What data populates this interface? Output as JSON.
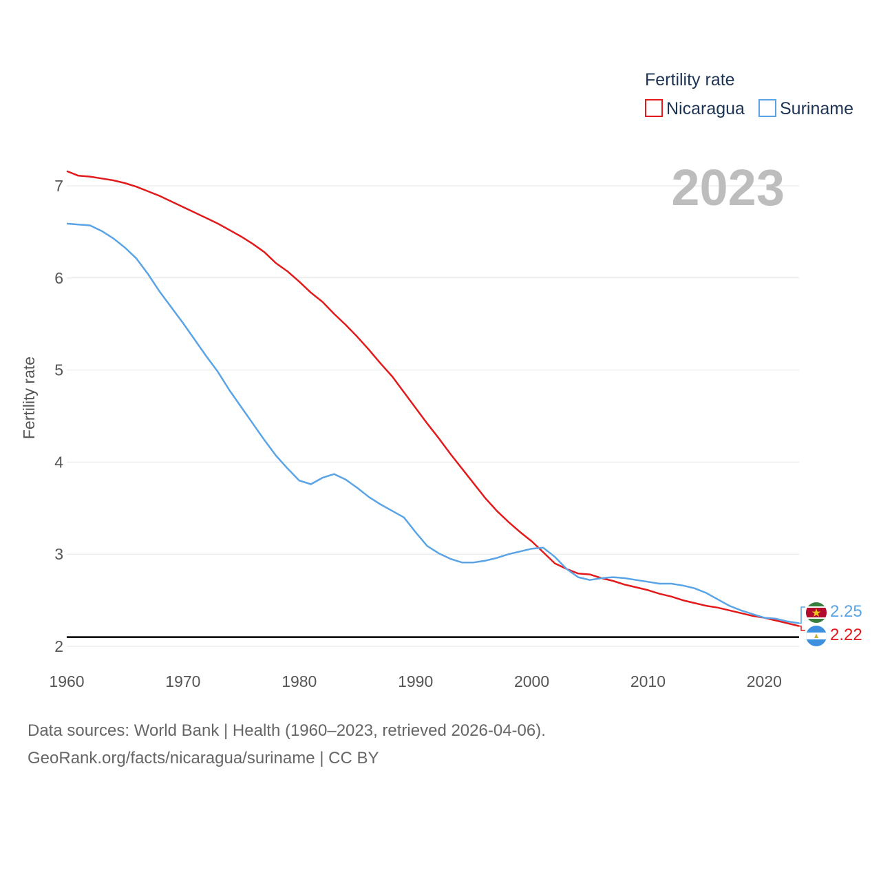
{
  "legend": {
    "title": "Fertility rate"
  },
  "year_label": "2023",
  "source": {
    "line1": "Data sources: World Bank | Health (1960–2023, retrieved 2026-04-06).",
    "line2": "GeoRank.org/facts/nicaragua/suriname | CC BY"
  },
  "colors": {
    "nicaragua": "#e31a1c",
    "suriname": "#5aa4e6",
    "reference": "#000000",
    "grid": "#e6e6e6"
  },
  "chart_data": {
    "type": "line",
    "title": "Fertility rate",
    "xlabel": "",
    "ylabel": "Fertility rate",
    "xlim": [
      1960,
      2023
    ],
    "ylim": [
      2,
      7.2
    ],
    "yticks": [
      2,
      3,
      4,
      5,
      6,
      7
    ],
    "xticks": [
      1960,
      1970,
      1980,
      1990,
      2000,
      2010,
      2020
    ],
    "grid": true,
    "legend_position": "top-right",
    "reference_line": 2.1,
    "x": [
      1960,
      1961,
      1962,
      1963,
      1964,
      1965,
      1966,
      1967,
      1968,
      1969,
      1970,
      1971,
      1972,
      1973,
      1974,
      1975,
      1976,
      1977,
      1978,
      1979,
      1980,
      1981,
      1982,
      1983,
      1984,
      1985,
      1986,
      1987,
      1988,
      1989,
      1990,
      1991,
      1992,
      1993,
      1994,
      1995,
      1996,
      1997,
      1998,
      1999,
      2000,
      2001,
      2002,
      2003,
      2004,
      2005,
      2006,
      2007,
      2008,
      2009,
      2010,
      2011,
      2012,
      2013,
      2014,
      2015,
      2016,
      2017,
      2018,
      2019,
      2020,
      2021,
      2022,
      2023
    ],
    "series": [
      {
        "name": "Nicaragua",
        "color": "#e31a1c",
        "end_label": "2.22",
        "values": [
          7.16,
          7.11,
          7.1,
          7.08,
          7.06,
          7.03,
          6.99,
          6.94,
          6.89,
          6.83,
          6.77,
          6.71,
          6.65,
          6.59,
          6.52,
          6.45,
          6.37,
          6.28,
          6.16,
          6.07,
          5.96,
          5.84,
          5.74,
          5.61,
          5.49,
          5.36,
          5.22,
          5.07,
          4.93,
          4.76,
          4.59,
          4.42,
          4.26,
          4.09,
          3.93,
          3.77,
          3.61,
          3.47,
          3.35,
          3.24,
          3.14,
          3.02,
          2.9,
          2.84,
          2.79,
          2.78,
          2.74,
          2.71,
          2.67,
          2.64,
          2.61,
          2.57,
          2.54,
          2.5,
          2.47,
          2.44,
          2.42,
          2.39,
          2.36,
          2.33,
          2.31,
          2.28,
          2.25,
          2.22
        ]
      },
      {
        "name": "Suriname",
        "color": "#5aa4e6",
        "end_label": "2.25",
        "values": [
          6.59,
          6.58,
          6.57,
          6.51,
          6.43,
          6.33,
          6.21,
          6.04,
          5.85,
          5.68,
          5.51,
          5.33,
          5.15,
          4.98,
          4.78,
          4.6,
          4.42,
          4.24,
          4.07,
          3.93,
          3.8,
          3.76,
          3.83,
          3.87,
          3.81,
          3.72,
          3.62,
          3.54,
          3.47,
          3.4,
          3.24,
          3.09,
          3.01,
          2.95,
          2.91,
          2.91,
          2.93,
          2.96,
          3.0,
          3.03,
          3.06,
          3.07,
          2.97,
          2.84,
          2.75,
          2.72,
          2.74,
          2.75,
          2.74,
          2.72,
          2.7,
          2.68,
          2.68,
          2.66,
          2.63,
          2.58,
          2.51,
          2.44,
          2.39,
          2.35,
          2.31,
          2.3,
          2.27,
          2.25
        ]
      }
    ]
  }
}
